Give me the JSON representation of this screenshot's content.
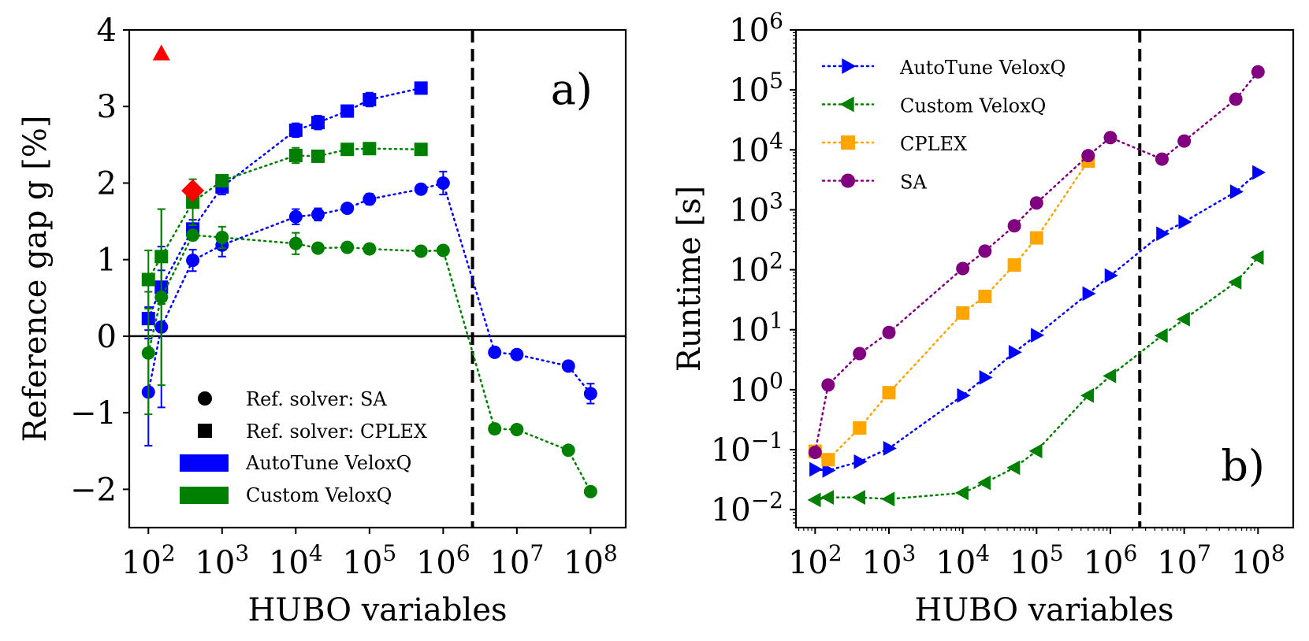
{
  "chart_data": [
    {
      "type": "scatter",
      "panel": "a)",
      "xlabel": "HUBO variables",
      "ylabel": "Reference gap g [%]",
      "xscale": "log",
      "xlim": [
        55,
        300000000
      ],
      "ylim": [
        -2.5,
        4
      ],
      "x_ticks": [
        {
          "value": 100,
          "base": "10",
          "exp": "2"
        },
        {
          "value": 1000,
          "base": "10",
          "exp": "3"
        },
        {
          "value": 10000,
          "base": "10",
          "exp": "4"
        },
        {
          "value": 100000,
          "base": "10",
          "exp": "5"
        },
        {
          "value": 1000000,
          "base": "10",
          "exp": "6"
        },
        {
          "value": 10000000,
          "base": "10",
          "exp": "7"
        },
        {
          "value": 100000000,
          "base": "10",
          "exp": "8"
        }
      ],
      "y_ticks": [
        {
          "value": 4,
          "label": "4"
        },
        {
          "value": 3,
          "label": "3"
        },
        {
          "value": 2,
          "label": "2"
        },
        {
          "value": 1,
          "label": "1"
        },
        {
          "value": 0,
          "label": "0"
        },
        {
          "value": -1,
          "label": "−1"
        },
        {
          "value": -2,
          "label": "−2"
        }
      ],
      "hline": 0,
      "vline": 2500000,
      "series": [
        {
          "name": "AutoTune VeloxQ (Ref. solver: SA)",
          "marker": "circle",
          "color": "#0000ff",
          "x": [
            100,
            150,
            400,
            1000,
            10000,
            20000,
            50000,
            100000,
            500000,
            1000000,
            5000000,
            10000000,
            50000000,
            100000000
          ],
          "y": [
            -0.73,
            0.12,
            0.99,
            1.19,
            1.56,
            1.59,
            1.67,
            1.79,
            1.92,
            2.0,
            -0.21,
            -0.24,
            -0.39,
            -0.75
          ],
          "err": [
            0.7,
            1.05,
            0.14,
            0.15,
            0.1,
            0.08,
            0.06,
            0.07,
            0.04,
            0.15,
            0.06,
            0.04,
            0.03,
            0.13
          ]
        },
        {
          "name": "AutoTune VeloxQ (Ref. solver: CPLEX)",
          "marker": "square",
          "color": "#0000ff",
          "x": [
            100,
            150,
            400,
            1000,
            10000,
            20000,
            50000,
            100000,
            500000
          ],
          "y": [
            0.23,
            0.64,
            1.4,
            1.95,
            2.69,
            2.79,
            2.94,
            3.09,
            3.24
          ],
          "err": [
            0.15,
            0.22,
            0.12,
            0.1,
            0.09,
            0.09,
            0.07,
            0.09,
            0.03
          ]
        },
        {
          "name": "Custom VeloxQ (Ref. solver: SA)",
          "marker": "circle",
          "color": "#008000",
          "x": [
            100,
            150,
            400,
            1000,
            10000,
            20000,
            50000,
            100000,
            500000,
            1000000,
            5000000,
            10000000,
            50000000,
            100000000
          ],
          "y": [
            -0.22,
            0.51,
            1.32,
            1.29,
            1.21,
            1.15,
            1.16,
            1.14,
            1.11,
            1.12,
            -1.21,
            -1.22,
            -1.49,
            -2.03
          ],
          "err": [
            0.8,
            1.15,
            0.07,
            0.14,
            0.14,
            0.05,
            0.03,
            0.03,
            0.03,
            0.03,
            0.03,
            0.03,
            0.03,
            0.03
          ]
        },
        {
          "name": "Custom VeloxQ (Ref. solver: CPLEX)",
          "marker": "square",
          "color": "#008000",
          "x": [
            100,
            150,
            400,
            1000,
            10000,
            20000,
            50000,
            100000,
            500000
          ],
          "y": [
            0.74,
            1.04,
            1.75,
            2.03,
            2.36,
            2.35,
            2.44,
            2.45,
            2.44
          ],
          "err": [
            0.38,
            0.62,
            0.3,
            0.07,
            0.1,
            0.04,
            0.04,
            0.04,
            0.02
          ]
        }
      ],
      "extra_points": [
        {
          "marker": "triangle",
          "color": "#ff0000",
          "x": 150,
          "y": 3.69
        },
        {
          "marker": "diamond",
          "color": "#ff0000",
          "x": 400,
          "y": 1.9
        }
      ],
      "legend": {
        "placement": "lower-left",
        "entries": [
          {
            "label": "Ref. solver: SA",
            "symbol": "circle",
            "color": "#000000"
          },
          {
            "label": "Ref. solver: CPLEX",
            "symbol": "square",
            "color": "#000000"
          },
          {
            "label": "AutoTune VeloxQ",
            "symbol": "patch",
            "color": "#0000ff"
          },
          {
            "label": "Custom VeloxQ",
            "symbol": "patch",
            "color": "#008000"
          }
        ]
      }
    },
    {
      "type": "line",
      "panel": "b)",
      "xlabel": "HUBO variables",
      "ylabel": "Runtime [s]",
      "xscale": "log",
      "yscale": "log",
      "xlim": [
        55,
        300000000
      ],
      "ylim_log10": [
        -2.3,
        6
      ],
      "x_ticks": [
        {
          "value": 100,
          "base": "10",
          "exp": "2"
        },
        {
          "value": 1000,
          "base": "10",
          "exp": "3"
        },
        {
          "value": 10000,
          "base": "10",
          "exp": "4"
        },
        {
          "value": 100000,
          "base": "10",
          "exp": "5"
        },
        {
          "value": 1000000,
          "base": "10",
          "exp": "6"
        },
        {
          "value": 10000000,
          "base": "10",
          "exp": "7"
        },
        {
          "value": 100000000,
          "base": "10",
          "exp": "8"
        }
      ],
      "y_ticks": [
        {
          "log": 6,
          "base": "10",
          "exp": "6"
        },
        {
          "log": 5,
          "base": "10",
          "exp": "5"
        },
        {
          "log": 4,
          "base": "10",
          "exp": "4"
        },
        {
          "log": 3,
          "base": "10",
          "exp": "3"
        },
        {
          "log": 2,
          "base": "10",
          "exp": "2"
        },
        {
          "log": 1,
          "base": "10",
          "exp": "1"
        },
        {
          "log": 0,
          "base": "10",
          "exp": "0"
        },
        {
          "log": -1,
          "base": "10",
          "exp": "−1"
        },
        {
          "log": -2,
          "base": "10",
          "exp": "−2"
        }
      ],
      "vline": 2500000,
      "series": [
        {
          "name": "AutoTune VeloxQ",
          "marker": "triangle-right",
          "color": "#0000ff",
          "x": [
            100,
            150,
            400,
            1000,
            10000,
            20000,
            50000,
            100000,
            500000,
            1000000,
            5000000,
            10000000,
            50000000,
            100000000
          ],
          "y": [
            0.047,
            0.045,
            0.063,
            0.105,
            0.8,
            1.6,
            4.2,
            8.1,
            40,
            80,
            400,
            630,
            2000,
            4200
          ]
        },
        {
          "name": "Custom VeloxQ",
          "marker": "triangle-left",
          "color": "#008000",
          "x": [
            100,
            150,
            400,
            1000,
            10000,
            20000,
            50000,
            100000,
            500000,
            1000000,
            5000000,
            10000000,
            50000000,
            100000000
          ],
          "y": [
            0.0145,
            0.016,
            0.016,
            0.015,
            0.019,
            0.028,
            0.05,
            0.095,
            0.8,
            1.7,
            8,
            15,
            62,
            160
          ]
        },
        {
          "name": "CPLEX",
          "marker": "square",
          "color": "#ffa500",
          "x": [
            100,
            150,
            400,
            1000,
            10000,
            20000,
            50000,
            100000,
            500000
          ],
          "y": [
            0.094,
            0.068,
            0.23,
            0.89,
            19,
            36,
            120,
            340,
            6500
          ]
        },
        {
          "name": "SA",
          "marker": "circle",
          "color": "#800080",
          "x": [
            100,
            150,
            400,
            1000,
            10000,
            20000,
            50000,
            100000,
            500000,
            1000000,
            5000000,
            10000000,
            50000000,
            100000000
          ],
          "y": [
            0.09,
            1.2,
            4,
            9,
            105,
            205,
            540,
            1300,
            8000,
            16000,
            7000,
            14000,
            70000,
            200000
          ]
        }
      ],
      "legend": {
        "placement": "top-left",
        "entries": [
          {
            "label": "AutoTune VeloxQ",
            "symbol": "triangle-right",
            "color": "#0000ff"
          },
          {
            "label": "Custom VeloxQ",
            "symbol": "triangle-left",
            "color": "#008000"
          },
          {
            "label": "CPLEX",
            "symbol": "square",
            "color": "#ffa500"
          },
          {
            "label": "SA",
            "symbol": "circle",
            "color": "#800080"
          }
        ]
      }
    }
  ]
}
